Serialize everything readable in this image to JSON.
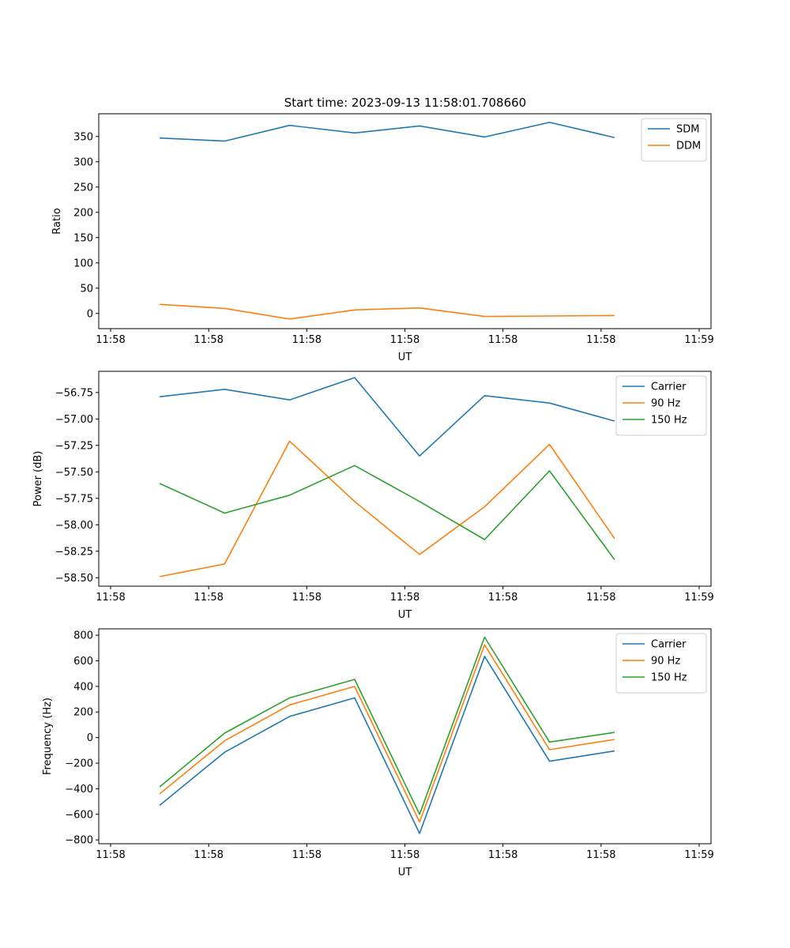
{
  "title": "Start time: 2023-09-13 11:58:01.708660",
  "colors": {
    "blue": "#1f77b4",
    "orange": "#ff7f0e",
    "green": "#2ca02c"
  },
  "chart_data": [
    {
      "type": "line",
      "xlabel": "UT",
      "ylabel": "Ratio",
      "xtick_labels": [
        "11:58",
        "11:58",
        "11:58",
        "11:58",
        "11:58",
        "11:58",
        "11:58"
      ],
      "xtick_last_label": "11:59",
      "ylim": [
        -30,
        395
      ],
      "yticks": [
        0,
        50,
        100,
        150,
        200,
        250,
        300,
        350
      ],
      "ytick_labels": [
        "0",
        "50",
        "100",
        "150",
        "200",
        "250",
        "300",
        "350"
      ],
      "legend_position": "top-right",
      "series": [
        {
          "name": "SDM",
          "color": "blue",
          "values": [
            347,
            341,
            372,
            357,
            371,
            349,
            378,
            348
          ]
        },
        {
          "name": "DDM",
          "color": "orange",
          "values": [
            18,
            10,
            -11,
            7,
            11,
            -6,
            -5,
            -4
          ]
        }
      ]
    },
    {
      "type": "line",
      "xlabel": "UT",
      "ylabel": "Power (dB)",
      "xtick_labels": [
        "11:58",
        "11:58",
        "11:58",
        "11:58",
        "11:58",
        "11:58",
        "11:58"
      ],
      "xtick_last_label": "11:59",
      "ylim": [
        -58.58,
        -56.55
      ],
      "yticks": [
        -58.5,
        -58.25,
        -58.0,
        -57.75,
        -57.5,
        -57.25,
        -57.0,
        -56.75
      ],
      "ytick_labels": [
        "−58.50",
        "−58.25",
        "−58.00",
        "−57.75",
        "−57.50",
        "−57.25",
        "−57.00",
        "−56.75"
      ],
      "legend_position": "top-right",
      "series": [
        {
          "name": "Carrier",
          "color": "blue",
          "values": [
            -56.79,
            -56.72,
            -56.82,
            -56.61,
            -57.35,
            -56.78,
            -56.85,
            -57.02
          ]
        },
        {
          "name": "90 Hz",
          "color": "orange",
          "values": [
            -58.49,
            -58.37,
            -57.21,
            -57.78,
            -58.28,
            -57.83,
            -57.24,
            -58.13
          ]
        },
        {
          "name": "150 Hz",
          "color": "green",
          "values": [
            -57.61,
            -57.89,
            -57.72,
            -57.44,
            -57.78,
            -58.14,
            -57.49,
            -58.33
          ]
        }
      ]
    },
    {
      "type": "line",
      "xlabel": "UT",
      "ylabel": "Frequency (Hz)",
      "xtick_labels": [
        "11:58",
        "11:58",
        "11:58",
        "11:58",
        "11:58",
        "11:58",
        "11:58"
      ],
      "xtick_last_label": "11:59",
      "ylim": [
        -830,
        850
      ],
      "yticks": [
        -800,
        -600,
        -400,
        -200,
        0,
        200,
        400,
        600,
        800
      ],
      "ytick_labels": [
        "−800",
        "−600",
        "−400",
        "−200",
        "0",
        "200",
        "400",
        "600",
        "800"
      ],
      "legend_position": "top-right",
      "series": [
        {
          "name": "Carrier",
          "color": "blue",
          "values": [
            -530,
            -115,
            165,
            310,
            -750,
            635,
            -185,
            -105
          ]
        },
        {
          "name": "90 Hz",
          "color": "orange",
          "values": [
            -440,
            -25,
            255,
            400,
            -660,
            725,
            -95,
            -15
          ]
        },
        {
          "name": "150 Hz",
          "color": "green",
          "values": [
            -385,
            35,
            310,
            455,
            -600,
            785,
            -35,
            40
          ]
        }
      ]
    }
  ]
}
